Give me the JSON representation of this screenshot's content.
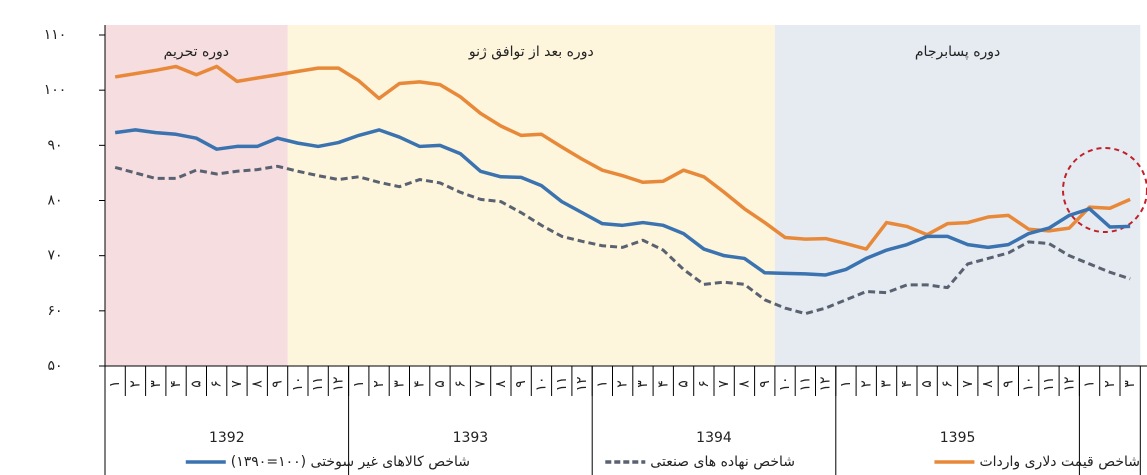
{
  "chart_data": {
    "type": "line",
    "categories": [
      "۱",
      "۲",
      "۳",
      "۴",
      "۵",
      "۶",
      "۷",
      "۸",
      "۹",
      "۱۰",
      "۱۱",
      "۱۲",
      "۱",
      "۲",
      "۳",
      "۴",
      "۵",
      "۶",
      "۷",
      "۸",
      "۹",
      "۱۰",
      "۱۱",
      "۱۲",
      "۱",
      "۲",
      "۳",
      "۴",
      "۵",
      "۶",
      "۷",
      "۸",
      "۹",
      "۱۰",
      "۱۱",
      "۱۲",
      "۱",
      "۲",
      "۳",
      "۴",
      "۵",
      "۶",
      "۷",
      "۸",
      "۹",
      "۱۰",
      "۱۱",
      "۱۲",
      "۱",
      "۲",
      "۳"
    ],
    "groups": [
      {
        "label": "1392",
        "size": 12
      },
      {
        "label": "1393",
        "size": 12
      },
      {
        "label": "1394",
        "size": 12
      },
      {
        "label": "1395",
        "size": 12
      },
      {
        "size": 3
      }
    ],
    "regions": [
      {
        "label": "دوره تحریم",
        "color": "#f5dde0",
        "start": 0,
        "end": 9
      },
      {
        "label": "دوره بعد از توافق ژنو",
        "color": "#fdf5dc",
        "start": 9,
        "end": 33
      },
      {
        "label": "دوره پسابرجام",
        "color": "#e6ebf2",
        "start": 33,
        "end": 51
      }
    ],
    "series": [
      {
        "name": "شاخص قیمت دلاری واردات",
        "color": "#e8893a",
        "dash": false,
        "values": [
          102.4,
          103,
          103.6,
          104.3,
          102.8,
          104.3,
          101.6,
          102.2,
          102.8,
          103.4,
          104,
          104,
          101.7,
          98.5,
          101.2,
          101.5,
          101,
          98.8,
          95.8,
          93.5,
          91.8,
          92,
          89.7,
          87.5,
          85.5,
          84.5,
          83.3,
          83.5,
          85.5,
          84.3,
          81.5,
          78.5,
          76,
          73.3,
          73,
          73.1,
          72.2,
          71.2,
          76,
          75.3,
          73.8,
          75.8,
          76,
          77,
          77.3,
          74.8,
          74.5,
          75,
          78.8,
          78.6,
          80.2
        ]
      },
      {
        "name": "شاخص نهاده های صنعتی",
        "color": "#5a6170",
        "dash": true,
        "values": [
          86,
          85,
          84,
          84,
          85.5,
          84.8,
          85.3,
          85.6,
          86.2,
          85.3,
          84.5,
          83.8,
          84.3,
          83.3,
          82.5,
          83.8,
          83.2,
          81.5,
          80.2,
          79.8,
          77.8,
          75.5,
          73.5,
          72.6,
          71.8,
          71.5,
          72.8,
          71,
          67.5,
          64.8,
          65.2,
          64.8,
          62,
          60.5,
          59.5,
          60.5,
          62,
          63.5,
          63.3,
          64.7,
          64.7,
          64.2,
          68.5,
          69.5,
          70.5,
          72.5,
          72.2,
          70,
          68.5,
          67,
          65.8
        ]
      },
      {
        "name": "شاخص کالاهای غیر سوختی (۱۰۰=۱۳۹۰)",
        "color": "#3a73b0",
        "dash": false,
        "values": [
          92.3,
          92.8,
          92.3,
          92,
          91.3,
          89.3,
          89.8,
          89.8,
          91.3,
          90.4,
          89.8,
          90.5,
          91.8,
          92.8,
          91.5,
          89.8,
          90,
          88.5,
          85.3,
          84.3,
          84.2,
          82.7,
          79.8,
          77.8,
          75.8,
          75.5,
          76,
          75.5,
          74,
          71.2,
          70,
          69.5,
          66.9,
          66.8,
          66.7,
          66.5,
          67.5,
          69.5,
          71,
          72,
          73.5,
          73.5,
          72,
          71.5,
          72,
          74,
          75,
          77.3,
          78.5,
          75.2,
          75.3
        ]
      }
    ],
    "ylim": [
      50,
      110
    ],
    "yticks": [
      {
        "value": 50,
        "label": "۵۰"
      },
      {
        "value": 60,
        "label": "۶۰"
      },
      {
        "value": 70,
        "label": "۷۰"
      },
      {
        "value": 80,
        "label": "۸۰"
      },
      {
        "value": 90,
        "label": "۹۰"
      },
      {
        "value": 100,
        "label": "۱۰۰"
      },
      {
        "value": 110,
        "label": "۱۱۰"
      }
    ]
  }
}
